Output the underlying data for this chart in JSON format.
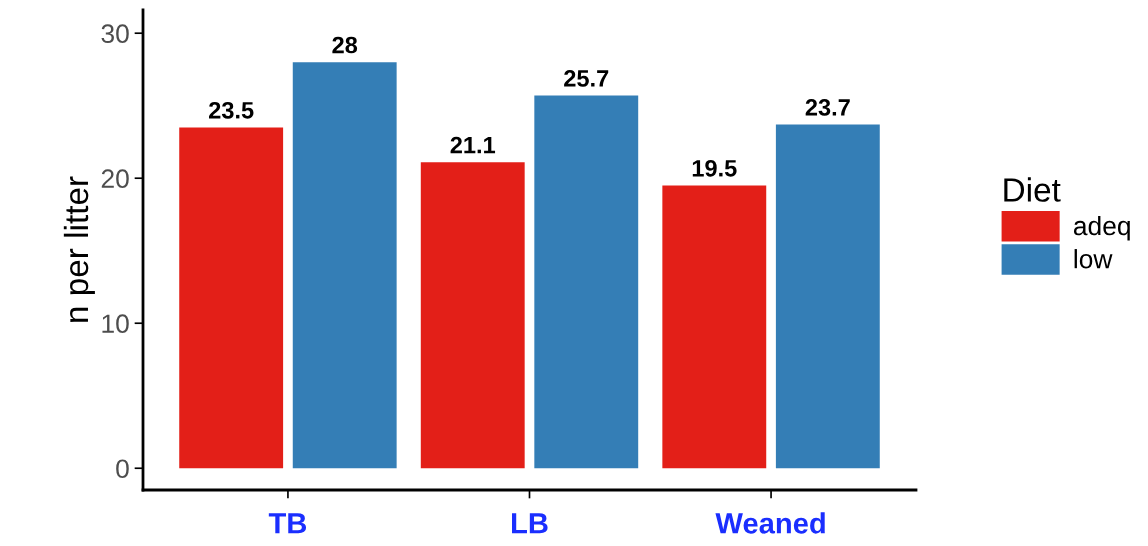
{
  "chart_data": {
    "type": "bar",
    "ylabel": "n per litter",
    "legend_title": "Diet",
    "categories": [
      "TB",
      "LB",
      "Weaned"
    ],
    "series": [
      {
        "name": "adeq",
        "color": "#e31f18",
        "values": [
          23.5,
          21.1,
          19.5
        ]
      },
      {
        "name": "low",
        "color": "#347eb6",
        "values": [
          28,
          25.7,
          23.7
        ]
      }
    ],
    "ylim": [
      -1.5,
      31.6
    ],
    "yticks": [
      0,
      10,
      20,
      30
    ],
    "data_labels": true,
    "legend": "right",
    "grid": false
  }
}
